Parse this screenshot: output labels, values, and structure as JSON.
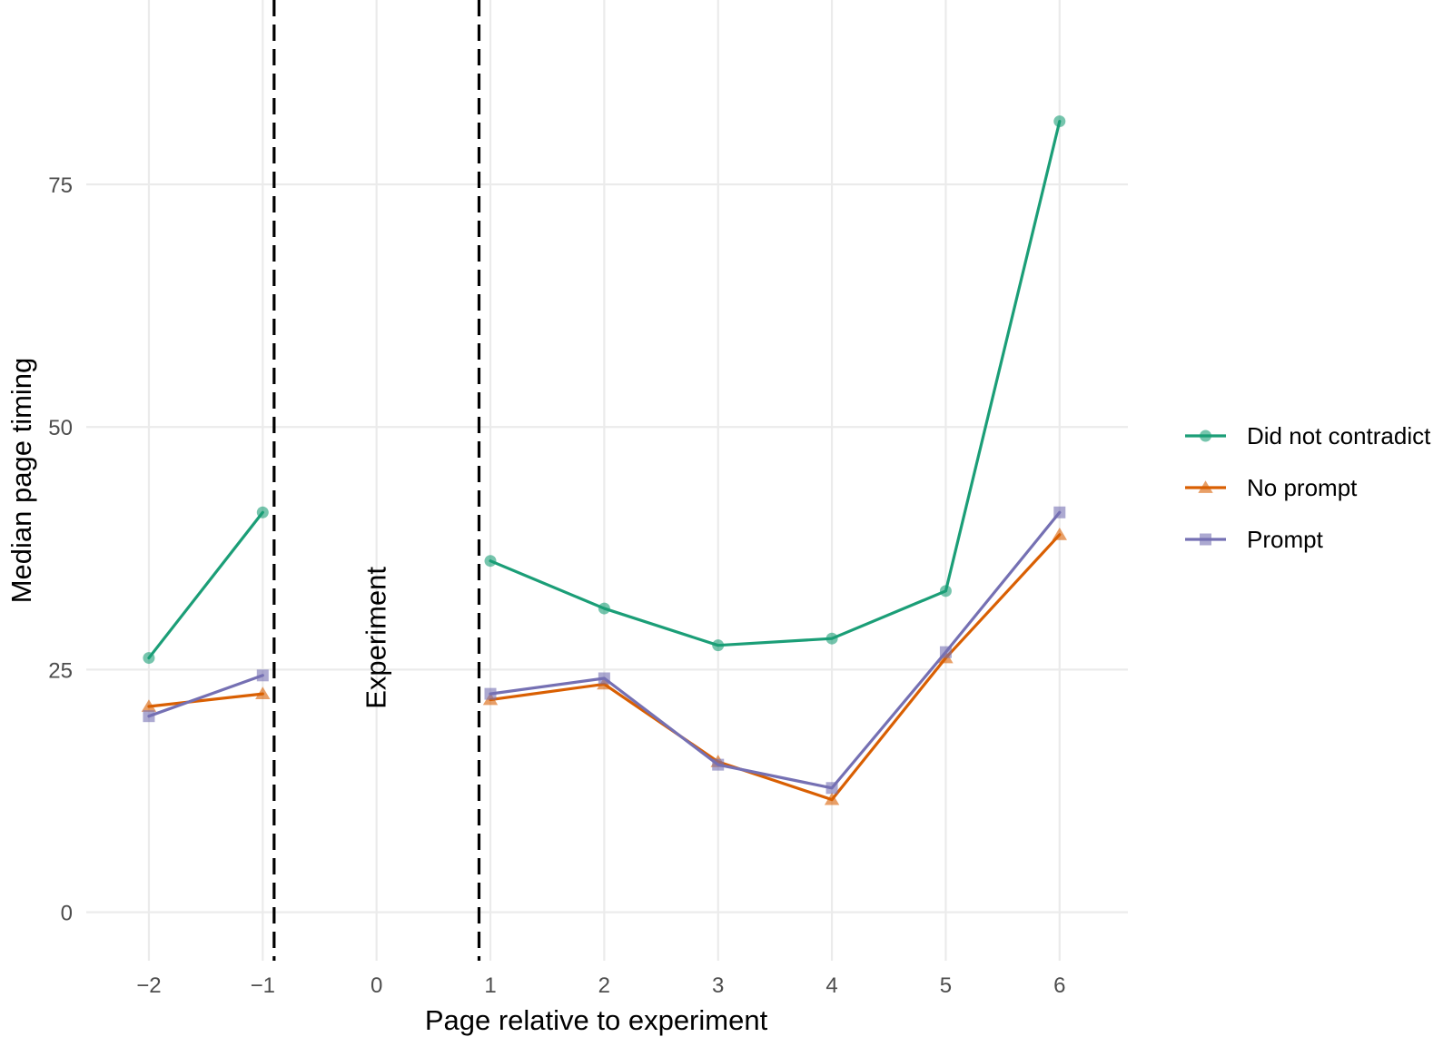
{
  "chart_data": {
    "type": "line",
    "xlabel": "Page relative to experiment",
    "ylabel": "Median page timing",
    "x_ticks": [
      -2,
      -1,
      0,
      1,
      2,
      3,
      4,
      5,
      6
    ],
    "x_tick_labels": [
      "−2",
      "−1",
      "0",
      "1",
      "2",
      "3",
      "4",
      "5",
      "6"
    ],
    "y_ticks": [
      0,
      25,
      50,
      75
    ],
    "y_tick_labels": [
      "0",
      "25",
      "50",
      "75"
    ],
    "xlim": [
      -2.55,
      6.6
    ],
    "ylim": [
      -5,
      94
    ],
    "grid": true,
    "legend_position": "right",
    "vertical_lines": [
      -0.9,
      0.9
    ],
    "annotation": {
      "text": "Experiment",
      "x": 0,
      "y": 25,
      "rotation": -90
    },
    "segments": [
      [
        -2,
        -1
      ],
      [
        1,
        2,
        3,
        4,
        5,
        6
      ]
    ],
    "series": [
      {
        "name": "Did not contradict",
        "color": "#1b9e77",
        "marker": "circle",
        "x": [
          -2,
          -1,
          1,
          2,
          3,
          4,
          5,
          6
        ],
        "y": [
          26.2,
          41.2,
          36.2,
          31.3,
          27.5,
          28.2,
          33.1,
          81.5
        ]
      },
      {
        "name": "No prompt",
        "color": "#d95f02",
        "marker": "triangle",
        "x": [
          -2,
          -1,
          1,
          2,
          3,
          4,
          5,
          6
        ],
        "y": [
          21.2,
          22.5,
          21.9,
          23.5,
          15.5,
          11.6,
          26.2,
          38.9
        ]
      },
      {
        "name": "Prompt",
        "color": "#7570b3",
        "marker": "square",
        "x": [
          -2,
          -1,
          1,
          2,
          3,
          4,
          5,
          6
        ],
        "y": [
          20.2,
          24.4,
          22.5,
          24.1,
          15.2,
          12.8,
          26.8,
          41.2
        ]
      }
    ]
  }
}
